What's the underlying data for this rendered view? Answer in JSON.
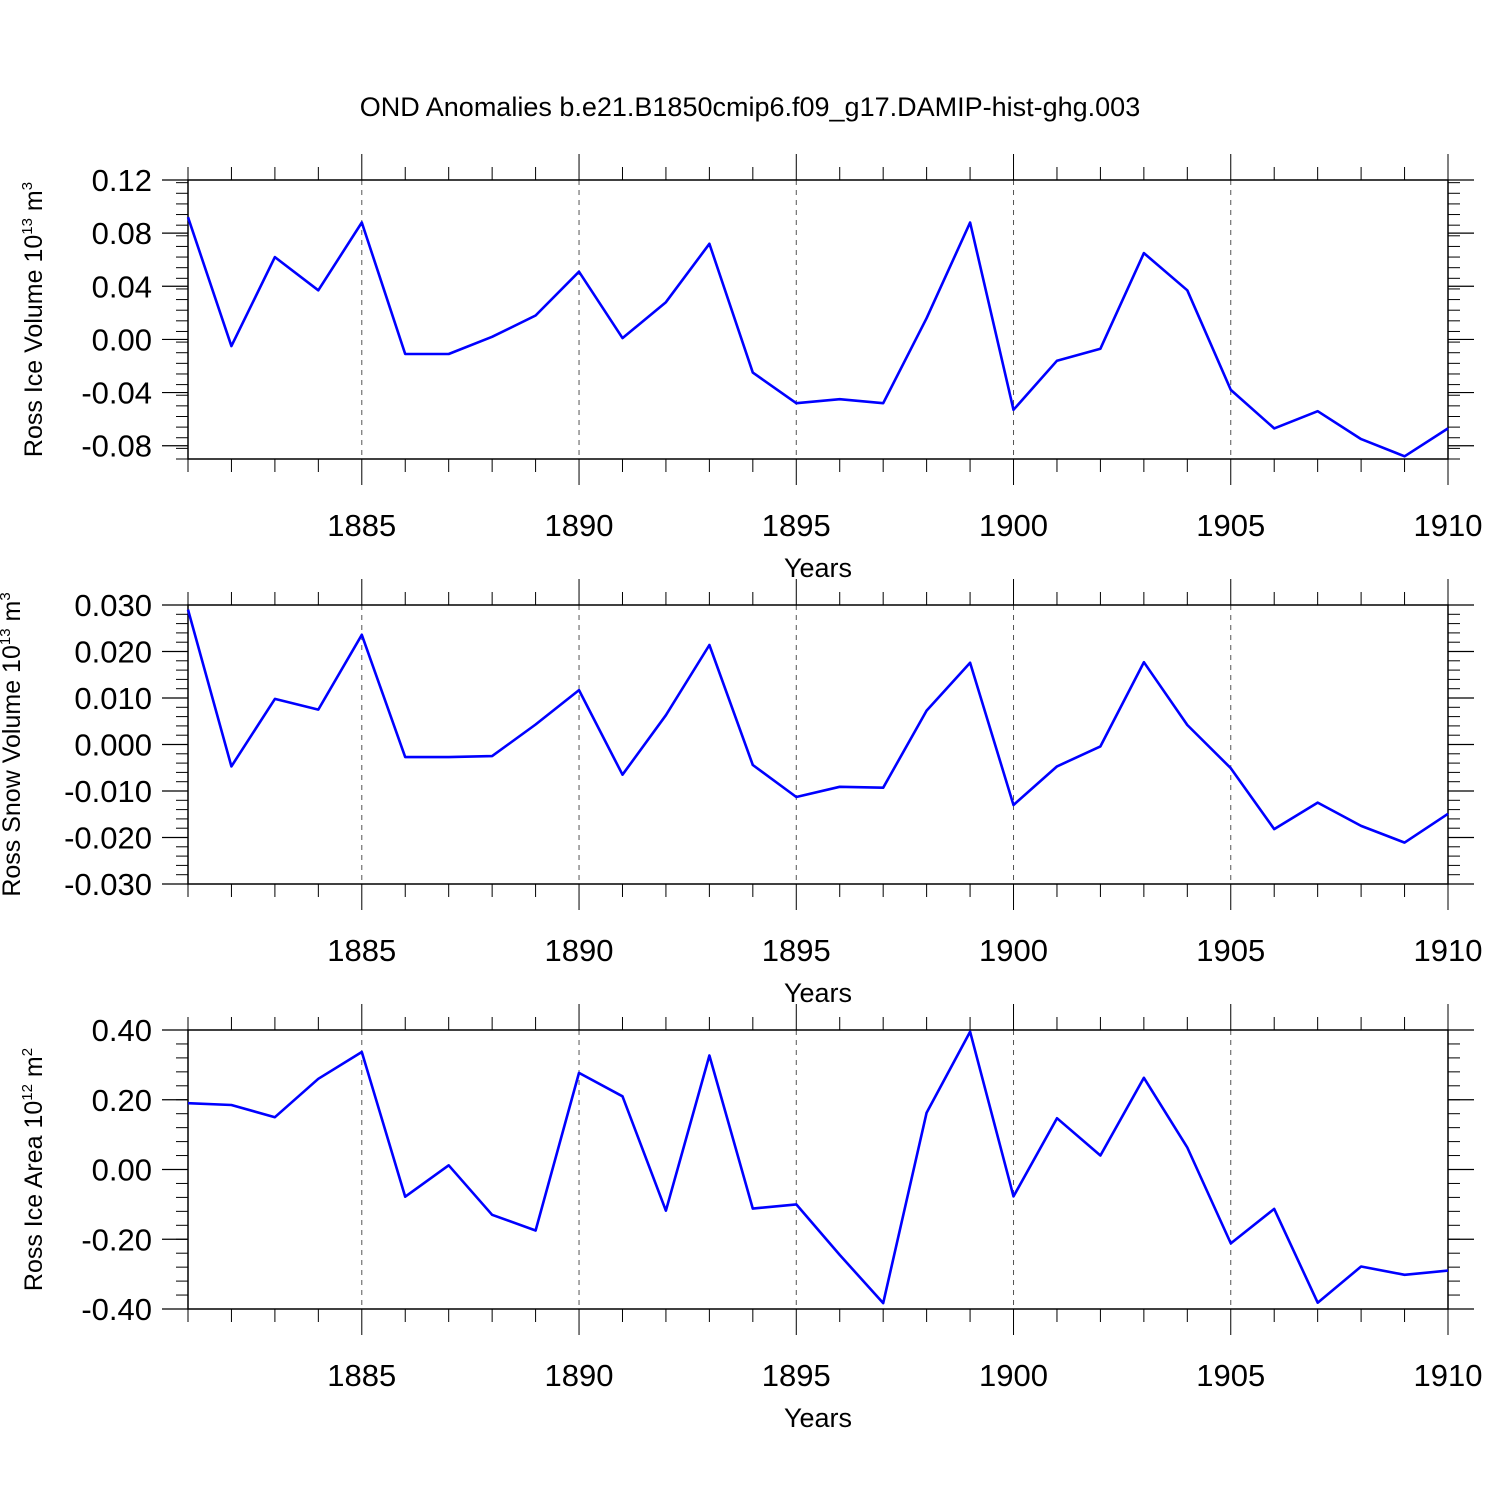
{
  "title": "OND Anomalies b.e21.B1850cmip6.f09_g17.DAMIP-hist-ghg.003",
  "chart_data": [
    {
      "type": "line",
      "ylabel": "Ross Ice Volume 10",
      "ylabel_sup": "13",
      "ylabel_unit": "m",
      "ylabel_unit_sup": "3",
      "xlabel": "Years",
      "xlim": [
        1881,
        1910
      ],
      "ylim": [
        -0.09,
        0.12
      ],
      "yticks": [
        0.12,
        0.08,
        0.04,
        0.0,
        -0.04,
        -0.08
      ],
      "ytick_labels": [
        "0.12",
        "0.08",
        "0.04",
        "0.00",
        "-0.04",
        "-0.08"
      ],
      "xticks": [
        1885,
        1890,
        1895,
        1900,
        1905,
        1910
      ],
      "xtick_labels": [
        "1885",
        "1890",
        "1895",
        "1900",
        "1905",
        "1910"
      ],
      "line_color": "#0000ff",
      "x": [
        1881,
        1882,
        1883,
        1884,
        1885,
        1886,
        1887,
        1888,
        1889,
        1890,
        1891,
        1892,
        1893,
        1894,
        1895,
        1896,
        1897,
        1898,
        1899,
        1900,
        1901,
        1902,
        1903,
        1904,
        1905,
        1906,
        1907,
        1908,
        1909,
        1910
      ],
      "y": [
        0.092,
        -0.005,
        0.062,
        0.037,
        0.088,
        -0.011,
        -0.011,
        0.002,
        0.018,
        0.051,
        0.001,
        0.028,
        0.072,
        -0.025,
        -0.048,
        -0.045,
        -0.048,
        0.016,
        0.088,
        -0.053,
        -0.016,
        -0.007,
        0.065,
        0.037,
        -0.038,
        -0.067,
        -0.054,
        -0.075,
        -0.088,
        -0.067
      ]
    },
    {
      "type": "line",
      "ylabel": "Ross Snow Volume 10",
      "ylabel_sup": "13",
      "ylabel_unit": "m",
      "ylabel_unit_sup": "3",
      "xlabel": "Years",
      "xlim": [
        1881,
        1910
      ],
      "ylim": [
        -0.03,
        0.03
      ],
      "yticks": [
        0.03,
        0.02,
        0.01,
        0.0,
        -0.01,
        -0.02,
        -0.03
      ],
      "ytick_labels": [
        "0.030",
        "0.020",
        "0.010",
        "0.000",
        "-0.010",
        "-0.020",
        "-0.030"
      ],
      "xticks": [
        1885,
        1890,
        1895,
        1900,
        1905,
        1910
      ],
      "xtick_labels": [
        "1885",
        "1890",
        "1895",
        "1900",
        "1905",
        "1910"
      ],
      "line_color": "#0000ff",
      "x": [
        1881,
        1882,
        1883,
        1884,
        1885,
        1886,
        1887,
        1888,
        1889,
        1890,
        1891,
        1892,
        1893,
        1894,
        1895,
        1896,
        1897,
        1898,
        1899,
        1900,
        1901,
        1902,
        1903,
        1904,
        1905,
        1906,
        1907,
        1908,
        1909,
        1910
      ],
      "y": [
        0.029,
        -0.0047,
        0.0098,
        0.0075,
        0.0236,
        -0.0027,
        -0.0027,
        -0.0025,
        0.0043,
        0.0117,
        -0.0065,
        0.0063,
        0.0214,
        -0.0044,
        -0.0113,
        -0.0091,
        -0.0093,
        0.0073,
        0.0176,
        -0.013,
        -0.0047,
        -0.0004,
        0.0177,
        0.0042,
        -0.0051,
        -0.0182,
        -0.0125,
        -0.0175,
        -0.0211,
        -0.0149
      ]
    },
    {
      "type": "line",
      "ylabel": "Ross Ice Area 10",
      "ylabel_sup": "12",
      "ylabel_unit": "m",
      "ylabel_unit_sup": "2",
      "xlabel": "Years",
      "xlim": [
        1881,
        1910
      ],
      "ylim": [
        -0.4,
        0.4
      ],
      "yticks": [
        0.4,
        0.2,
        0.0,
        -0.2,
        -0.4
      ],
      "ytick_labels": [
        "0.40",
        "0.20",
        "0.00",
        "-0.20",
        "-0.40"
      ],
      "xticks": [
        1885,
        1890,
        1895,
        1900,
        1905,
        1910
      ],
      "xtick_labels": [
        "1885",
        "1890",
        "1895",
        "1900",
        "1905",
        "1910"
      ],
      "line_color": "#0000ff",
      "x": [
        1881,
        1882,
        1883,
        1884,
        1885,
        1886,
        1887,
        1888,
        1889,
        1890,
        1891,
        1892,
        1893,
        1894,
        1895,
        1896,
        1897,
        1898,
        1899,
        1900,
        1901,
        1902,
        1903,
        1904,
        1905,
        1906,
        1907,
        1908,
        1909,
        1910
      ],
      "y": [
        0.19,
        0.185,
        0.15,
        0.26,
        0.337,
        -0.078,
        0.012,
        -0.13,
        -0.175,
        0.277,
        0.21,
        -0.118,
        0.327,
        -0.112,
        -0.1,
        -0.245,
        -0.383,
        0.163,
        0.395,
        -0.077,
        0.147,
        0.04,
        0.263,
        0.063,
        -0.212,
        -0.113,
        -0.382,
        -0.278,
        -0.302,
        -0.29
      ]
    }
  ]
}
